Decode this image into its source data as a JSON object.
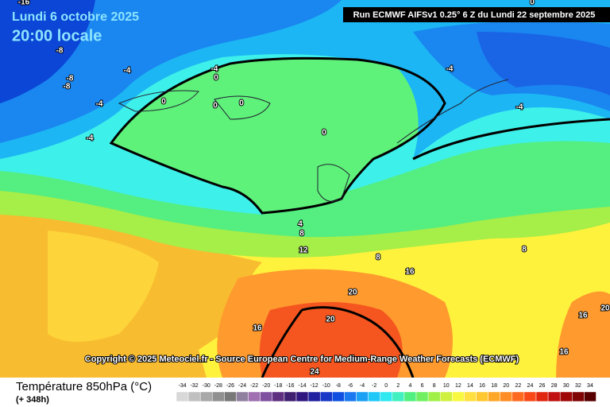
{
  "header": {
    "date": "Lundi 6 octobre 2025",
    "time": "20:00 locale",
    "run": "Run ECMWF AIFSv1 0.25° 6 Z du Lundi 22 septembre 2025"
  },
  "copyright": "Copyright © 2025 Meteociel.fr - Source European Centre for Medium-Range Weather Forecasts (ECMWF)",
  "footer": {
    "title": "Température 850hPa (°C)",
    "lead": "(+ 348h)"
  },
  "legend": {
    "labels": [
      -34,
      -32,
      -30,
      -28,
      -26,
      -24,
      -22,
      -20,
      -18,
      -16,
      -14,
      -12,
      -10,
      -8,
      -6,
      -4,
      -2,
      0,
      2,
      4,
      6,
      8,
      10,
      12,
      14,
      16,
      18,
      20,
      22,
      24,
      26,
      28,
      30,
      32,
      34
    ]
  },
  "contours": [
    "-16",
    "-8",
    "-8",
    "-8",
    "-4",
    "-4",
    "-4",
    "-4",
    "0",
    "0",
    "0",
    "0",
    "0",
    "-4",
    "-4",
    "0",
    "4",
    "8",
    "12",
    "8",
    "8",
    "16",
    "20",
    "20",
    "16",
    "16",
    "16",
    "20",
    "24"
  ]
}
